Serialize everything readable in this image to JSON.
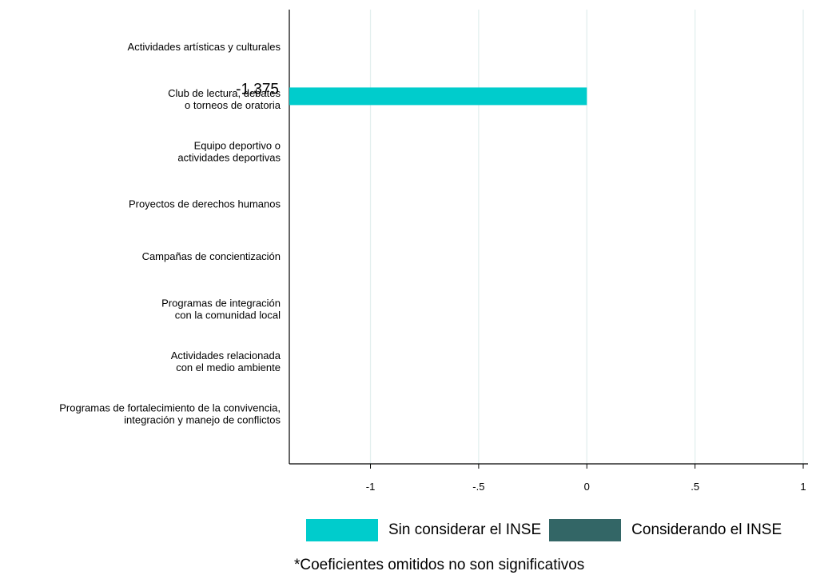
{
  "chart_data": {
    "type": "bar",
    "orientation": "horizontal",
    "categories": [
      [
        "Actividades artísticas y culturales"
      ],
      [
        "Club de lectura, debates",
        "o torneos de oratoria"
      ],
      [
        "Equipo deportivo o",
        "actividades deportivas"
      ],
      [
        "Proyectos de derechos humanos"
      ],
      [
        "Campañas de concientización"
      ],
      [
        "Programas de integración",
        "con la comunidad local"
      ],
      [
        "Actividades relacionada",
        "con el medio ambiente"
      ],
      [
        "Programas de fortalecimiento de la convivencia,",
        "integración y manejo de conflictos"
      ]
    ],
    "series": [
      {
        "name": "Sin considerar el INSE",
        "color": "#00CCCC",
        "values": [
          null,
          -1.375,
          null,
          null,
          null,
          null,
          null,
          null
        ]
      },
      {
        "name": "Considerando el INSE",
        "color": "#336666",
        "values": [
          null,
          null,
          null,
          null,
          null,
          null,
          null,
          null
        ]
      }
    ],
    "data_labels": [
      "",
      "-1.375",
      "",
      "",
      "",
      "",
      "",
      ""
    ],
    "xlim": [
      -1.45,
      1.0
    ],
    "xticks": [
      -1,
      -0.5,
      0,
      0.5,
      1
    ],
    "xtick_labels": [
      "-1",
      "-.5",
      "0",
      ".5",
      "1"
    ],
    "grid": "vertical",
    "legend_position": "bottom",
    "note": "*Coeficientes omitidos no son significativos"
  }
}
